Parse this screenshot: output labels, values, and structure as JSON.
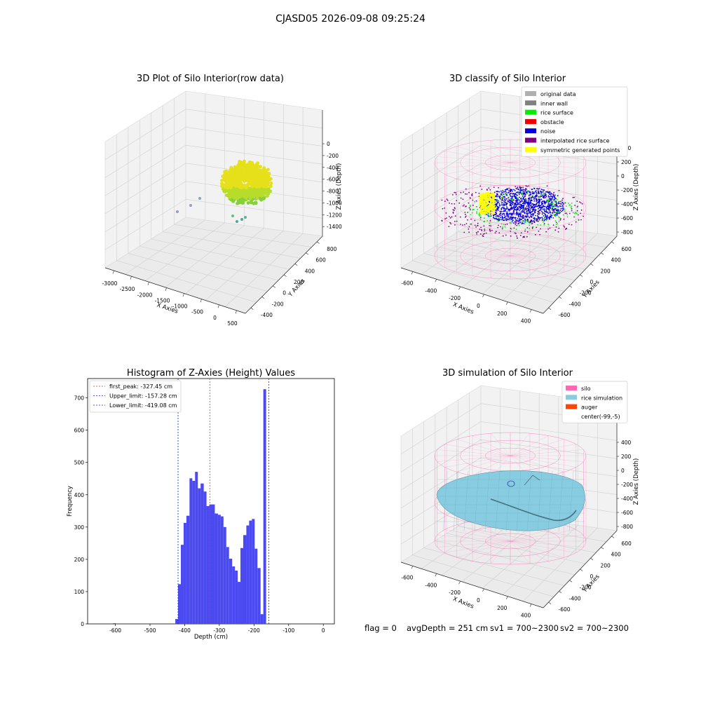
{
  "suptitle": "CJASD05 2026-09-08 09:25:24",
  "colors": {
    "histogram_bar": "#4a4af0",
    "first_peak_line": "#e03030",
    "limit_lines": "#2020d0",
    "silo_wire": "#ff69b4",
    "rice_surface": "#87cce0",
    "auger": "#ff4500",
    "green": "#00ee00",
    "yellow": "#ffff00"
  },
  "panel_raw": {
    "title": "3D Plot of Silo Interior(row data)",
    "x_label": "X Axies",
    "y_label": "Y Axies",
    "z_label": "Z Axies (Depth)",
    "x_ticks": [
      "-3000",
      "-2500",
      "-2000",
      "-1500",
      "-1000",
      "-500",
      "0",
      "500"
    ],
    "y_ticks": [
      "-400",
      "-200",
      "0",
      "200",
      "400",
      "600",
      "800"
    ],
    "z_ticks": [
      "0",
      "-200",
      "-400",
      "-600",
      "-800",
      "-1000",
      "-1200",
      "-1400"
    ]
  },
  "panel_classify": {
    "title": "3D classify of Silo Interior",
    "x_label": "X Axies",
    "y_label": "Y Axies",
    "z_label": "Z Axies (Depth)",
    "x_ticks": [
      "-600",
      "-400",
      "-200",
      "0",
      "200",
      "400"
    ],
    "y_ticks": [
      "-600",
      "-400",
      "-200",
      "0",
      "200",
      "400",
      "600"
    ],
    "z_ticks": [
      "400",
      "200",
      "0",
      "-200",
      "-400",
      "-600",
      "-800"
    ],
    "legend": [
      {
        "label": "original data",
        "color": "#b0b0b0"
      },
      {
        "label": "inner wall",
        "color": "#808080"
      },
      {
        "label": "rice surface",
        "color": "#00ee00"
      },
      {
        "label": "obstacle",
        "color": "#ee0000"
      },
      {
        "label": "noise",
        "color": "#0000dd"
      },
      {
        "label": "interpolated rice surface",
        "color": "#800080"
      },
      {
        "label": "symmetric generated points",
        "color": "#ffff00"
      }
    ]
  },
  "panel_hist": {
    "title": "Histogram of Z-Axies (Height) Values",
    "x_label": "Depth (cm)",
    "y_label": "Frequency",
    "x_ticks": [
      -600,
      -500,
      -400,
      -300,
      -200,
      -100,
      0
    ],
    "y_ticks": [
      0,
      100,
      200,
      300,
      400,
      500,
      600,
      700
    ],
    "legend": [
      {
        "label": "first_peak: -327.45 cm",
        "color": "#e03030"
      },
      {
        "label": "Upper_limit: -157.28 cm",
        "color": "#2020d0"
      },
      {
        "label": "Lower_limit: -419.08 cm",
        "color": "#2020d0"
      }
    ]
  },
  "panel_sim": {
    "title": "3D simulation of Silo Interior",
    "x_label": "X Axies",
    "y_label": "Y Axies",
    "z_label": "Z Axies (Depth)",
    "x_ticks": [
      "-600",
      "-400",
      "-200",
      "0",
      "200",
      "400"
    ],
    "y_ticks": [
      "-600",
      "-400",
      "-200",
      "0",
      "200",
      "400",
      "600"
    ],
    "z_ticks": [
      "400",
      "200",
      "0",
      "-200",
      "-400",
      "-600",
      "-800"
    ],
    "legend": [
      {
        "label": "silo",
        "color": "#ff69b4"
      },
      {
        "label": "rice simulation",
        "color": "#87cce0"
      },
      {
        "label": "auger",
        "color": "#ff4500"
      },
      {
        "label": "center(-99,-5)",
        "color": ""
      }
    ]
  },
  "status": {
    "flag": "flag = 0",
    "avg_depth": "avgDepth = 251 cm",
    "sv1": "sv1 = 700~2300",
    "sv2": "sv2 = 700~2300"
  },
  "chart_data": [
    {
      "type": "histogram",
      "title": "Histogram of Z-Axies (Height) Values",
      "xlabel": "Depth (cm)",
      "ylabel": "Frequency",
      "xlim": [
        -680,
        32
      ],
      "ylim": [
        0,
        760
      ],
      "bin_width": 8.2,
      "bins": [
        {
          "x0": -607,
          "x1": -599,
          "count": 2
        },
        {
          "x0": -427,
          "x1": -419,
          "count": 15
        },
        {
          "x0": -419,
          "x1": -411,
          "count": 123
        },
        {
          "x0": -411,
          "x1": -403,
          "count": 245
        },
        {
          "x0": -403,
          "x1": -395,
          "count": 313
        },
        {
          "x0": -395,
          "x1": -386,
          "count": 335
        },
        {
          "x0": -386,
          "x1": -378,
          "count": 451
        },
        {
          "x0": -378,
          "x1": -370,
          "count": 443
        },
        {
          "x0": -370,
          "x1": -362,
          "count": 471
        },
        {
          "x0": -362,
          "x1": -354,
          "count": 420
        },
        {
          "x0": -354,
          "x1": -345,
          "count": 435
        },
        {
          "x0": -345,
          "x1": -337,
          "count": 410
        },
        {
          "x0": -337,
          "x1": -329,
          "count": 365
        },
        {
          "x0": -329,
          "x1": -321,
          "count": 370
        },
        {
          "x0": -321,
          "x1": -313,
          "count": 370
        },
        {
          "x0": -313,
          "x1": -304,
          "count": 342
        },
        {
          "x0": -304,
          "x1": -296,
          "count": 338
        },
        {
          "x0": -296,
          "x1": -288,
          "count": 333
        },
        {
          "x0": -288,
          "x1": -280,
          "count": 300
        },
        {
          "x0": -280,
          "x1": -272,
          "count": 238
        },
        {
          "x0": -272,
          "x1": -263,
          "count": 202
        },
        {
          "x0": -263,
          "x1": -255,
          "count": 178
        },
        {
          "x0": -255,
          "x1": -247,
          "count": 165
        },
        {
          "x0": -247,
          "x1": -239,
          "count": 130
        },
        {
          "x0": -239,
          "x1": -231,
          "count": 235
        },
        {
          "x0": -231,
          "x1": -222,
          "count": 275
        },
        {
          "x0": -222,
          "x1": -214,
          "count": 305
        },
        {
          "x0": -214,
          "x1": -206,
          "count": 320
        },
        {
          "x0": -206,
          "x1": -198,
          "count": 325
        },
        {
          "x0": -198,
          "x1": -190,
          "count": 233
        },
        {
          "x0": -190,
          "x1": -181,
          "count": 173
        },
        {
          "x0": -181,
          "x1": -173,
          "count": 30
        },
        {
          "x0": -173,
          "x1": -165,
          "count": 727
        }
      ],
      "reference_lines": [
        {
          "name": "first_peak",
          "x": -327.45,
          "style": "dashed",
          "color": "#e03030"
        },
        {
          "name": "Upper_limit",
          "x": -157.28,
          "style": "dashed",
          "color": "#2020d0"
        },
        {
          "name": "Lower_limit",
          "x": -419.08,
          "style": "dashed",
          "color": "#2020d0"
        }
      ],
      "legend_position": "top-left"
    }
  ]
}
